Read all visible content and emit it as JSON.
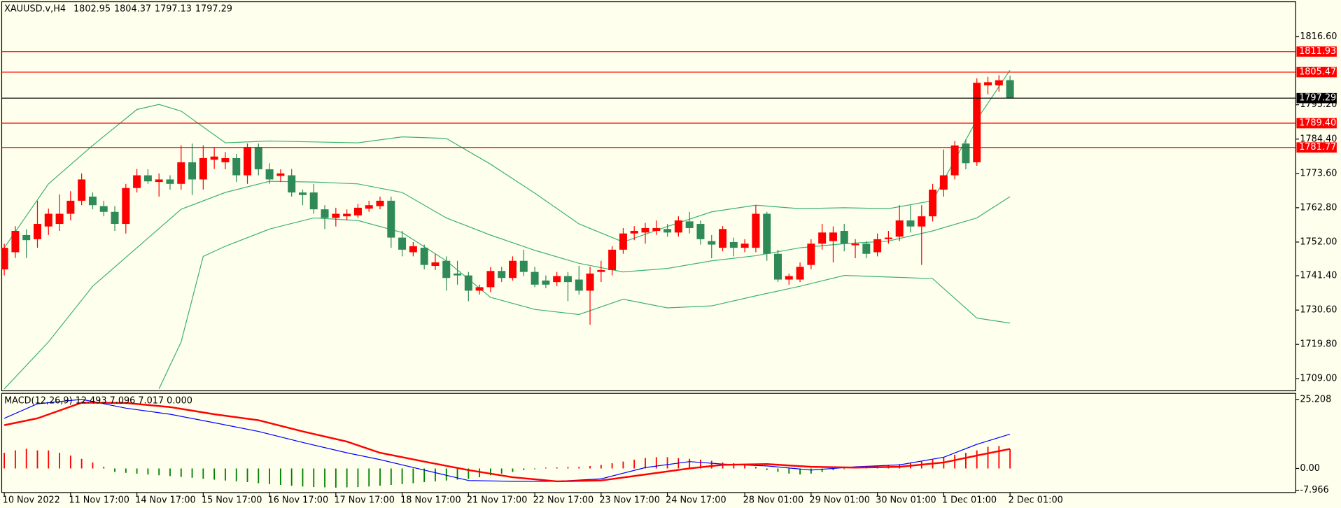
{
  "chart_data": [
    {
      "type": "candlestick",
      "symbol": "XAUUSD.v,H4",
      "categories": [
        "10 Nov 2022",
        null,
        null,
        null,
        null,
        null,
        "11 Nov 17:00",
        null,
        null,
        null,
        null,
        null,
        "14 Nov 17:00",
        null,
        null,
        null,
        null,
        null,
        "15 Nov 17:00",
        null,
        null,
        null,
        null,
        null,
        "16 Nov 17:00",
        null,
        null,
        null,
        null,
        null,
        "17 Nov 17:00",
        null,
        null,
        null,
        null,
        null,
        "18 Nov 17:00",
        null,
        null,
        null,
        null,
        null,
        "21 Nov 17:00",
        null,
        null,
        null,
        null,
        null,
        "22 Nov 17:00",
        null,
        null,
        null,
        null,
        null,
        "23 Nov 17:00",
        null,
        null,
        null,
        null,
        null,
        "24 Nov 17:00",
        null,
        null,
        null,
        null,
        null,
        null,
        "28 Nov 01:00",
        null,
        null,
        null,
        null,
        null,
        "29 Nov 01:00",
        null,
        null,
        null,
        null,
        null,
        "30 Nov 01:00",
        null,
        null,
        null,
        null,
        null,
        "1 Dec 01:00",
        null,
        null,
        null,
        null,
        null,
        "2 Dec 01:00"
      ],
      "open": [
        1743.4,
        1748.8,
        1754.2,
        1752.9,
        1756.9,
        1757.7,
        1760.9,
        1765.0,
        1766.3,
        1763.3,
        1761.5,
        1757.7,
        1769.0,
        1773.0,
        1770.9,
        1771.7,
        1770.3,
        1777.1,
        1771.7,
        1777.9,
        1777.1,
        1778.4,
        1773.0,
        1781.9,
        1774.9,
        1772.8,
        1773.0,
        1767.6,
        1767.6,
        1762.3,
        1759.6,
        1760.1,
        1760.4,
        1762.5,
        1763.3,
        1765.0,
        1753.4,
        1748.8,
        1750.2,
        1744.5,
        1746.1,
        1742.1,
        1741.5,
        1736.7,
        1737.8,
        1742.9,
        1740.7,
        1746.1,
        1742.6,
        1739.9,
        1739.4,
        1741.3,
        1740.2,
        1736.7,
        1742.6,
        1743.2,
        1749.6,
        1754.7,
        1755.0,
        1755.5,
        1756.1,
        1755.0,
        1758.5,
        1757.7,
        1752.3,
        1750.2,
        1752.0,
        1750.2,
        1750.2,
        1760.9,
        1748.3,
        1740.2,
        1740.2,
        1744.8,
        1751.5,
        1752.3,
        1755.5,
        1751.0,
        1751.5,
        1748.8,
        1752.9,
        1753.7,
        1758.8,
        1756.9,
        1760.1,
        1768.5,
        1773.0,
        1783.0,
        1777.1,
        1801.3,
        1801.3,
        1802.95
      ],
      "high": [
        1751.5,
        1757.0,
        1756.0,
        1765.0,
        1762.5,
        1767.0,
        1768.0,
        1773.6,
        1767.6,
        1765.0,
        1763.3,
        1770.3,
        1775.0,
        1774.9,
        1773.6,
        1773.0,
        1782.4,
        1783.0,
        1782.4,
        1781.9,
        1780.3,
        1779.7,
        1783.0,
        1783.0,
        1776.8,
        1774.9,
        1775.0,
        1768.5,
        1770.3,
        1763.6,
        1762.8,
        1762.3,
        1764.0,
        1765.0,
        1766.3,
        1766.3,
        1755.5,
        1752.0,
        1751.2,
        1748.3,
        1747.5,
        1746.1,
        1742.6,
        1738.6,
        1744.2,
        1744.2,
        1747.5,
        1749.6,
        1744.2,
        1741.5,
        1742.6,
        1742.6,
        1744.5,
        1744.2,
        1746.1,
        1750.7,
        1756.4,
        1757.0,
        1758.0,
        1758.8,
        1757.7,
        1760.1,
        1761.5,
        1758.8,
        1754.2,
        1757.0,
        1753.4,
        1752.9,
        1763.6,
        1761.5,
        1749.6,
        1742.1,
        1745.6,
        1752.9,
        1757.7,
        1756.9,
        1757.7,
        1752.9,
        1752.3,
        1754.7,
        1755.5,
        1763.6,
        1763.6,
        1763.6,
        1770.3,
        1781.1,
        1783.8,
        1784.3,
        1803.5,
        1804.0,
        1804.5,
        1804.37
      ],
      "low": [
        1741.5,
        1747.0,
        1747.0,
        1750.2,
        1754.2,
        1755.5,
        1758.8,
        1763.6,
        1762.3,
        1760.1,
        1755.5,
        1754.7,
        1767.6,
        1770.3,
        1766.3,
        1768.5,
        1768.5,
        1766.8,
        1768.5,
        1775.0,
        1774.9,
        1770.9,
        1770.3,
        1773.0,
        1770.3,
        1770.9,
        1766.3,
        1763.6,
        1760.9,
        1756.1,
        1756.9,
        1758.8,
        1759.6,
        1761.5,
        1762.3,
        1750.2,
        1747.5,
        1747.5,
        1743.4,
        1743.2,
        1736.7,
        1738.6,
        1733.4,
        1735.5,
        1736.2,
        1739.4,
        1739.9,
        1741.3,
        1737.8,
        1737.5,
        1738.1,
        1733.4,
        1735.5,
        1726.0,
        1739.4,
        1741.5,
        1748.3,
        1752.6,
        1751.5,
        1754.2,
        1753.7,
        1753.7,
        1754.7,
        1751.2,
        1746.9,
        1749.1,
        1747.5,
        1748.8,
        1748.8,
        1746.1,
        1739.4,
        1738.6,
        1739.4,
        1743.4,
        1749.6,
        1745.6,
        1749.1,
        1746.9,
        1746.9,
        1747.5,
        1751.5,
        1752.3,
        1755.0,
        1744.8,
        1758.5,
        1766.3,
        1771.7,
        1774.9,
        1776.0,
        1798.5,
        1799.3,
        1797.13
      ],
      "close": [
        1750.2,
        1755.5,
        1752.6,
        1757.7,
        1760.9,
        1760.9,
        1765.0,
        1771.7,
        1763.6,
        1761.5,
        1757.7,
        1769.0,
        1773.0,
        1771.1,
        1771.7,
        1770.3,
        1777.1,
        1771.7,
        1778.4,
        1778.9,
        1778.4,
        1773.0,
        1781.9,
        1774.9,
        1771.7,
        1773.6,
        1767.6,
        1766.8,
        1762.3,
        1759.6,
        1760.9,
        1760.9,
        1762.8,
        1763.6,
        1765.0,
        1753.4,
        1749.6,
        1750.7,
        1744.8,
        1745.6,
        1740.7,
        1741.5,
        1736.7,
        1737.8,
        1742.9,
        1740.7,
        1746.1,
        1742.6,
        1738.6,
        1738.6,
        1741.3,
        1739.4,
        1736.7,
        1742.1,
        1743.2,
        1749.6,
        1754.7,
        1755.5,
        1756.4,
        1756.4,
        1755.0,
        1758.8,
        1756.4,
        1752.9,
        1751.2,
        1756.1,
        1750.2,
        1751.5,
        1760.9,
        1748.3,
        1740.2,
        1741.3,
        1744.2,
        1751.5,
        1755.0,
        1755.0,
        1751.5,
        1751.5,
        1748.3,
        1752.9,
        1753.4,
        1758.8,
        1756.9,
        1760.1,
        1768.5,
        1773.0,
        1782.4,
        1776.8,
        1802.1,
        1802.3,
        1802.9,
        1797.29
      ],
      "up_color": "#ff0000",
      "down_color": "#2e8b57",
      "bands": [
        {
          "color": "#3cb371",
          "x": [
            0,
            4,
            8,
            12,
            14,
            16,
            20,
            24,
            28,
            32,
            36,
            40,
            44,
            48,
            52,
            56,
            60,
            64,
            68,
            72,
            76,
            80,
            84,
            88,
            91
          ],
          "values": [
            1750.2,
            1770.3,
            1782.4,
            1793.7,
            1795.3,
            1793.2,
            1783.2,
            1783.8,
            1783.5,
            1783.2,
            1785.1,
            1784.6,
            1776.5,
            1767.4,
            1757.7,
            1752.0,
            1756.9,
            1761.5,
            1763.6,
            1762.5,
            1762.8,
            1762.5,
            1765.0,
            1790.5,
            1806.1
          ]
        },
        {
          "color": "#3cb371",
          "x": [
            0,
            4,
            8,
            12,
            16,
            20,
            24,
            28,
            32,
            36,
            40,
            44,
            48,
            52,
            56,
            60,
            64,
            68,
            72,
            76,
            80,
            84,
            88,
            91
          ],
          "values": [
            1705.8,
            1720.6,
            1738.1,
            1750.2,
            1762.3,
            1767.6,
            1771.1,
            1770.9,
            1770.3,
            1767.6,
            1759.6,
            1754.2,
            1749.4,
            1745.3,
            1742.6,
            1743.7,
            1746.1,
            1747.7,
            1750.2,
            1751.5,
            1752.3,
            1755.5,
            1759.6,
            1766.3
          ]
        },
        {
          "color": "#3cb371",
          "x": [
            14,
            16,
            18,
            20,
            24,
            28,
            32,
            36,
            40,
            44,
            48,
            52,
            56,
            60,
            64,
            68,
            72,
            76,
            80,
            84,
            88,
            91
          ],
          "values": [
            1705.8,
            1720.6,
            1747.5,
            1750.7,
            1756.1,
            1759.6,
            1758.8,
            1755.0,
            1746.1,
            1734.6,
            1730.8,
            1729.2,
            1734.0,
            1731.3,
            1731.9,
            1735.1,
            1738.1,
            1741.5,
            1741.0,
            1740.5,
            1728.1,
            1726.5
          ]
        }
      ],
      "levels": [
        {
          "value": 1811.93,
          "color": "#ff0000"
        },
        {
          "value": 1805.47,
          "color": "#ff0000"
        },
        {
          "value": 1797.29,
          "color": "#000000"
        },
        {
          "value": 1789.4,
          "label": "1789.40",
          "color": "#ff0000"
        },
        {
          "value": 1781.77,
          "color": "#ff0000"
        }
      ],
      "ylim": [
        1705.2,
        1827.6
      ],
      "yticks": [
        {
          "value": 1816.6,
          "label": "1816.60"
        },
        {
          "value": 1795.2,
          "label": "1795.20"
        },
        {
          "value": 1784.4,
          "label": "1784.40"
        },
        {
          "value": 1773.6,
          "label": "1773.60"
        },
        {
          "value": 1762.8,
          "label": "1762.80"
        },
        {
          "value": 1752,
          "label": "1752.00"
        },
        {
          "value": 1741.4,
          "label": "1741.40"
        },
        {
          "value": 1730.6,
          "label": "1730.60"
        },
        {
          "value": 1719.8,
          "label": "1719.80"
        },
        {
          "value": 1709,
          "label": "1709.00"
        }
      ]
    },
    {
      "type": "macd",
      "title": "MACD(12,26,9) 12.493 7.096 7.017 0.000",
      "histogram": {
        "up_color": "#ff0000",
        "down_color": "#008000",
        "values": [
          5.7,
          6.6,
          7.2,
          6.6,
          6.6,
          5.7,
          4.7,
          3.5,
          2.2,
          0.6,
          -1.3,
          -1.6,
          -1.9,
          -2.2,
          -2.5,
          -2.8,
          -3.1,
          -3.4,
          -3.8,
          -4.1,
          -4.4,
          -4.7,
          -5.0,
          -5.4,
          -5.7,
          -6.0,
          -6.3,
          -6.6,
          -6.8,
          -6.9,
          -7.0,
          -6.9,
          -6.8,
          -6.6,
          -6.3,
          -6.0,
          -5.7,
          -5.4,
          -5.0,
          -4.7,
          -4.4,
          -4.1,
          -3.8,
          -3.2,
          -2.5,
          -1.9,
          -1.3,
          -0.6,
          -0.3,
          0.3,
          0.4,
          0.5,
          0.6,
          0.9,
          1.3,
          1.9,
          2.5,
          3.2,
          3.8,
          4.1,
          4.1,
          3.8,
          3.5,
          3.2,
          2.8,
          2.2,
          1.9,
          1.3,
          0.6,
          -0.6,
          -1.3,
          -1.9,
          -2.2,
          -1.9,
          -1.3,
          -0.6,
          -0.3,
          0.3,
          0.6,
          0.9,
          1.3,
          1.6,
          1.9,
          2.5,
          3.2,
          4.1,
          5.0,
          5.7,
          6.6,
          7.9,
          8.2,
          7.0
        ]
      },
      "series": [
        {
          "color": "#0000ff",
          "x": [
            0,
            3,
            7,
            11,
            15,
            19,
            23,
            27,
            31,
            34,
            38,
            42,
            46,
            50,
            54,
            58,
            62,
            65,
            69,
            73,
            77,
            81,
            85,
            88,
            91
          ],
          "values": [
            18.3,
            23.6,
            25.2,
            22.0,
            19.8,
            16.7,
            13.5,
            9.5,
            5.7,
            3.2,
            -0.6,
            -4.4,
            -4.7,
            -4.7,
            -3.8,
            0.3,
            2.5,
            1.6,
            0.9,
            -0.6,
            0.6,
            1.3,
            4.1,
            8.8,
            12.5
          ]
        },
        {
          "color": "#ff0000",
          "x": [
            0,
            3,
            7,
            11,
            15,
            19,
            23,
            27,
            31,
            34,
            38,
            42,
            46,
            50,
            54,
            58,
            62,
            65,
            69,
            73,
            77,
            81,
            85,
            88,
            91
          ],
          "values": [
            15.8,
            18.3,
            24.0,
            23.9,
            22.4,
            19.8,
            17.6,
            13.5,
            9.8,
            5.7,
            2.5,
            -0.6,
            -3.2,
            -4.7,
            -4.4,
            -2.2,
            0,
            1.3,
            1.6,
            0.6,
            0.3,
            0.6,
            2.2,
            4.7,
            7.1
          ]
        }
      ],
      "ylim": [
        -8.8,
        27.4
      ],
      "yticks": [
        25.208,
        {
          "value": 0,
          "label": "0.00"
        },
        -7.966
      ]
    }
  ]
}
